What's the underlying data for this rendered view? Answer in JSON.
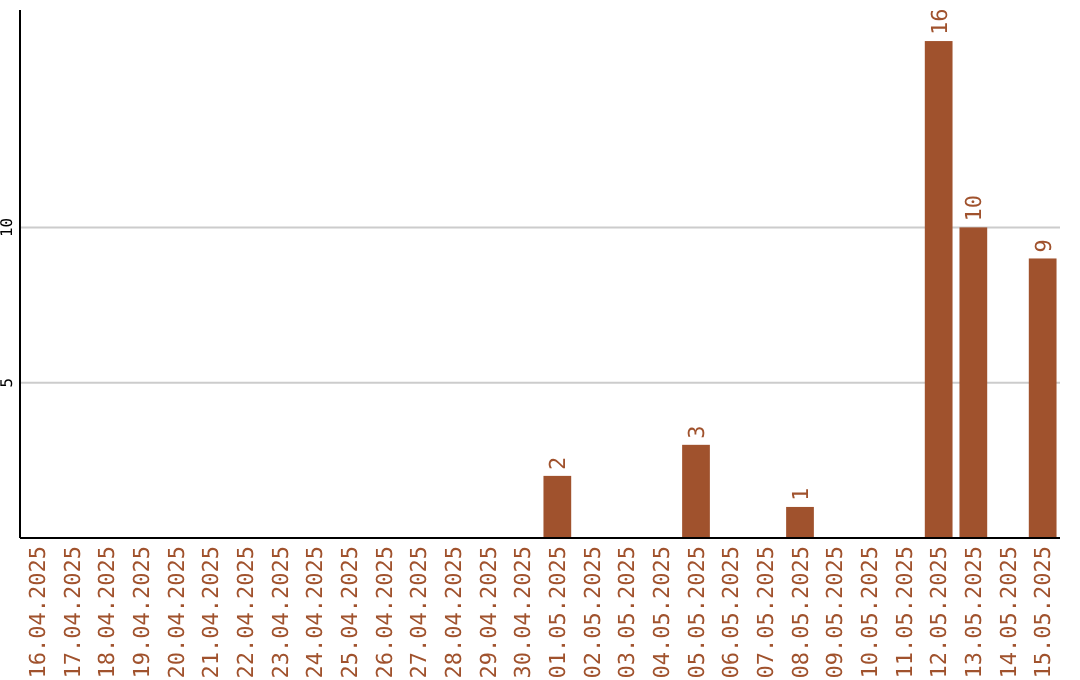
{
  "chart_data": {
    "type": "bar",
    "categories": [
      "16.04.2025",
      "17.04.2025",
      "18.04.2025",
      "19.04.2025",
      "20.04.2025",
      "21.04.2025",
      "22.04.2025",
      "23.04.2025",
      "24.04.2025",
      "25.04.2025",
      "26.04.2025",
      "27.04.2025",
      "28.04.2025",
      "29.04.2025",
      "30.04.2025",
      "01.05.2025",
      "02.05.2025",
      "03.05.2025",
      "04.05.2025",
      "05.05.2025",
      "06.05.2025",
      "07.05.2025",
      "08.05.2025",
      "09.05.2025",
      "10.05.2025",
      "11.05.2025",
      "12.05.2025",
      "13.05.2025",
      "14.05.2025",
      "15.05.2025"
    ],
    "values": [
      null,
      null,
      null,
      null,
      null,
      null,
      null,
      null,
      null,
      null,
      null,
      null,
      null,
      null,
      null,
      2,
      null,
      null,
      null,
      3,
      null,
      null,
      1,
      null,
      null,
      null,
      16,
      10,
      null,
      9
    ],
    "color": "#a0522d",
    "ylim": [
      0,
      17
    ],
    "yticks": [
      5,
      10
    ],
    "grid": "y",
    "data_labels": true
  }
}
